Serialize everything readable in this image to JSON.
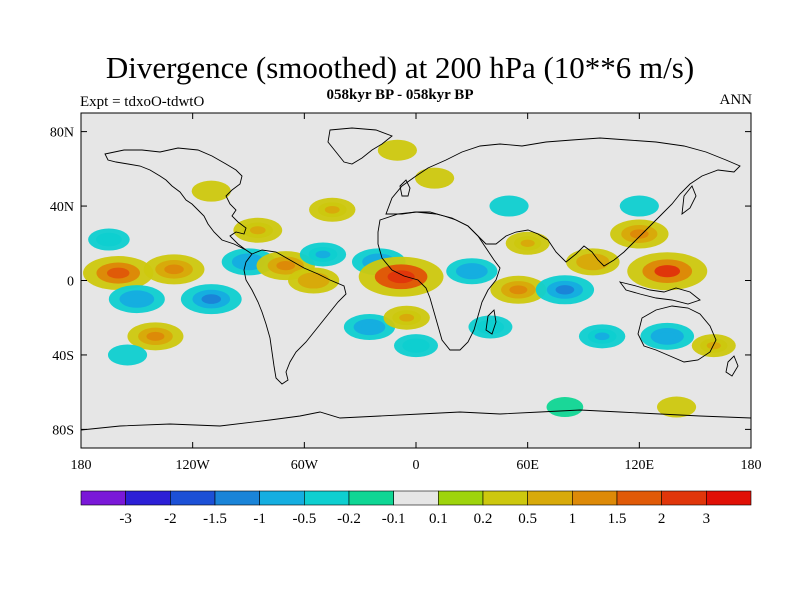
{
  "title": "Divergence (smoothed) at 200 hPa (10**6 m/s)",
  "subtitle": "058kyr BP - 058kyr BP",
  "expt_label": "Expt = tdxoO-tdwtO",
  "season": "ANN",
  "chart_data": {
    "type": "heatmap",
    "field": "Divergence (smoothed) at 200 hPa",
    "units": "10**6 m/s",
    "lon_range": [
      -180,
      180
    ],
    "lat_range": [
      -90,
      90
    ],
    "lat_ticks": [
      "80N",
      "40N",
      "0",
      "40S",
      "80S"
    ],
    "lat_tick_values": [
      80,
      40,
      0,
      -40,
      -80
    ],
    "lon_ticks": [
      "180",
      "120W",
      "60W",
      "0",
      "60E",
      "120E",
      "180"
    ],
    "lon_tick_values": [
      -180,
      -120,
      -60,
      0,
      60,
      120,
      180
    ],
    "levels": [
      "-3",
      "-2",
      "-1.5",
      "-1",
      "-0.5",
      "-0.2",
      "-0.1",
      "0.1",
      "0.2",
      "0.5",
      "1",
      "1.5",
      "2",
      "3"
    ],
    "colors": [
      "#7a18d8",
      "#2c1fd6",
      "#1c50d6",
      "#1a84d8",
      "#15aee0",
      "#0ecfd0",
      "#0fd694",
      "#e6e6e6",
      "#9ed40c",
      "#cdc80e",
      "#d8aa0a",
      "#dd8a08",
      "#e05a08",
      "#e0360a",
      "#e01006"
    ],
    "anomalies": [
      {
        "lon": -160,
        "lat": 4,
        "value": 1.6
      },
      {
        "lon": -130,
        "lat": 6,
        "value": 1.2
      },
      {
        "lon": -150,
        "lat": -10,
        "value": -1.0
      },
      {
        "lon": -110,
        "lat": -10,
        "value": -1.2
      },
      {
        "lon": -165,
        "lat": 22,
        "value": -0.4
      },
      {
        "lon": -140,
        "lat": -30,
        "value": 1.0
      },
      {
        "lon": -155,
        "lat": -40,
        "value": -0.3
      },
      {
        "lon": -90,
        "lat": 10,
        "value": -0.9
      },
      {
        "lon": -85,
        "lat": 27,
        "value": 0.7
      },
      {
        "lon": -70,
        "lat": 8,
        "value": 1.1
      },
      {
        "lon": -55,
        "lat": 0,
        "value": 0.8
      },
      {
        "lon": -50,
        "lat": 14,
        "value": -0.6
      },
      {
        "lon": -45,
        "lat": 38,
        "value": 0.6
      },
      {
        "lon": -20,
        "lat": 10,
        "value": -0.9
      },
      {
        "lon": -8,
        "lat": 2,
        "value": 2.2
      },
      {
        "lon": -25,
        "lat": -25,
        "value": -0.8
      },
      {
        "lon": -5,
        "lat": -20,
        "value": 0.6
      },
      {
        "lon": 0,
        "lat": -35,
        "value": -0.5
      },
      {
        "lon": 30,
        "lat": 5,
        "value": -0.8
      },
      {
        "lon": 55,
        "lat": -5,
        "value": 1.0
      },
      {
        "lon": 40,
        "lat": -25,
        "value": -0.5
      },
      {
        "lon": 60,
        "lat": 20,
        "value": 0.5
      },
      {
        "lon": 80,
        "lat": -5,
        "value": -1.1
      },
      {
        "lon": 95,
        "lat": 10,
        "value": 0.9
      },
      {
        "lon": 120,
        "lat": 25,
        "value": 1.1
      },
      {
        "lon": 135,
        "lat": 5,
        "value": 2.0
      },
      {
        "lon": 100,
        "lat": -30,
        "value": -0.6
      },
      {
        "lon": 135,
        "lat": -30,
        "value": -0.9
      },
      {
        "lon": 160,
        "lat": -35,
        "value": 0.5
      },
      {
        "lon": 120,
        "lat": 40,
        "value": -0.3
      },
      {
        "lon": 50,
        "lat": 40,
        "value": -0.3
      },
      {
        "lon": 10,
        "lat": 55,
        "value": 0.3
      },
      {
        "lon": -10,
        "lat": 70,
        "value": 0.3
      },
      {
        "lon": -110,
        "lat": 48,
        "value": 0.3
      },
      {
        "lon": 80,
        "lat": -68,
        "value": -0.2
      },
      {
        "lon": 140,
        "lat": -68,
        "value": 0.3
      }
    ]
  },
  "colorbar": {
    "labels": [
      "-3",
      "-2",
      "-1.5",
      "-1",
      "-0.5",
      "-0.2",
      "-0.1",
      "0.1",
      "0.2",
      "0.5",
      "1",
      "1.5",
      "2",
      "3"
    ]
  }
}
